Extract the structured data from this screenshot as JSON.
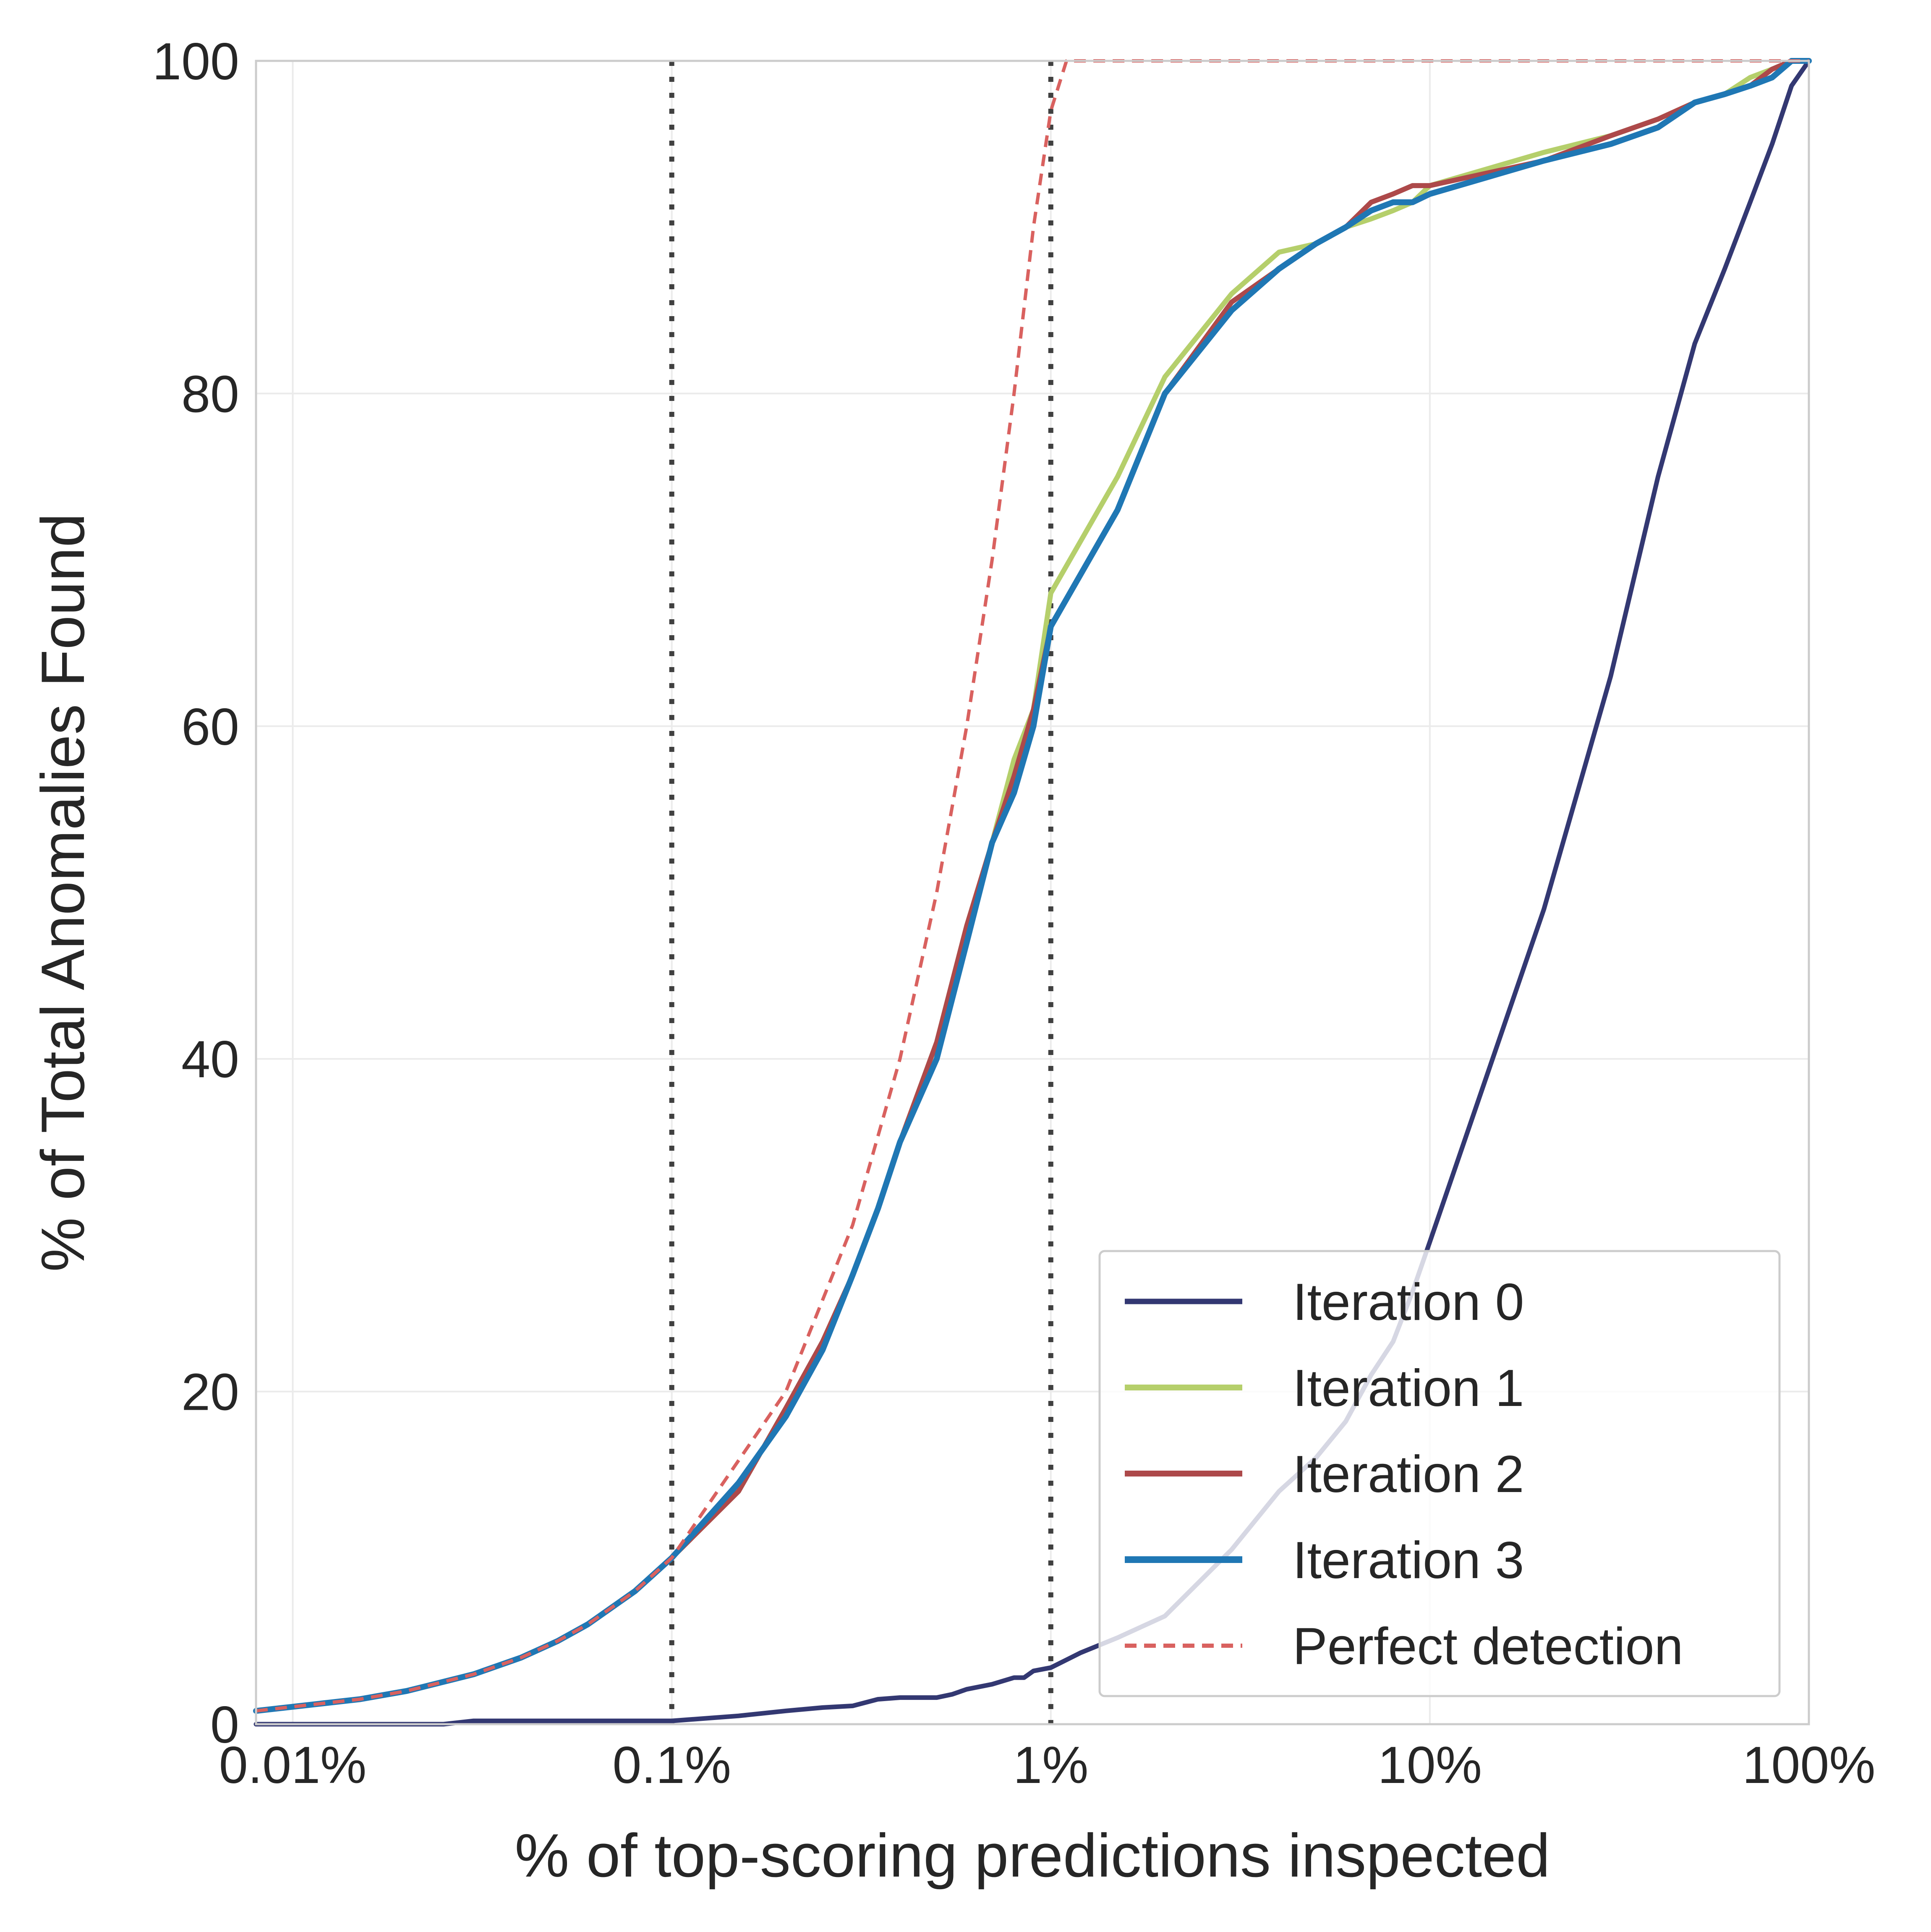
{
  "chart_data": {
    "type": "line",
    "title": "",
    "xlabel": "% of top-scoring predictions inspected",
    "ylabel": "% of Total Anomalies Found",
    "x_scale": "log",
    "xlim": [
      0.008,
      100
    ],
    "ylim": [
      0,
      100
    ],
    "x_ticks": [
      0.01,
      0.1,
      1,
      10,
      100
    ],
    "x_tick_labels": [
      "0.01%",
      "0.1%",
      "1%",
      "10%",
      "100%"
    ],
    "y_ticks": [
      0,
      20,
      40,
      60,
      80,
      100
    ],
    "y_tick_labels": [
      "0",
      "20",
      "40",
      "60",
      "80",
      "100"
    ],
    "grid": true,
    "legend_position": "lower-right",
    "vlines": [
      {
        "x": 0.1,
        "color": "#404040",
        "style": "dotted"
      },
      {
        "x": 1,
        "color": "#404040",
        "style": "dotted"
      }
    ],
    "series": [
      {
        "name": "Iteration 0",
        "color": "#333872",
        "style": "solid",
        "points": [
          [
            0.008,
            0
          ],
          [
            0.025,
            0
          ],
          [
            0.03,
            0.2
          ],
          [
            0.05,
            0.2
          ],
          [
            0.1,
            0.2
          ],
          [
            0.15,
            0.5
          ],
          [
            0.2,
            0.8
          ],
          [
            0.25,
            1.0
          ],
          [
            0.3,
            1.1
          ],
          [
            0.35,
            1.5
          ],
          [
            0.4,
            1.6
          ],
          [
            0.5,
            1.6
          ],
          [
            0.55,
            1.8
          ],
          [
            0.6,
            2.1
          ],
          [
            0.7,
            2.4
          ],
          [
            0.8,
            2.8
          ],
          [
            0.85,
            2.8
          ],
          [
            0.9,
            3.2
          ],
          [
            1,
            3.4
          ],
          [
            1.2,
            4.3
          ],
          [
            1.5,
            5.2
          ],
          [
            2,
            6.5
          ],
          [
            3,
            10.5
          ],
          [
            4,
            14
          ],
          [
            5,
            16
          ],
          [
            6,
            18.2
          ],
          [
            7,
            21
          ],
          [
            8,
            23
          ],
          [
            9,
            26
          ],
          [
            10,
            29
          ],
          [
            20,
            49
          ],
          [
            30,
            63
          ],
          [
            40,
            75
          ],
          [
            50,
            83
          ],
          [
            60,
            87.5
          ],
          [
            70,
            91.5
          ],
          [
            80,
            95
          ],
          [
            90,
            98.5
          ],
          [
            100,
            100
          ]
        ]
      },
      {
        "name": "Iteration 1",
        "color": "#b5cf6b",
        "style": "solid",
        "points": [
          [
            0.008,
            0.8
          ],
          [
            0.015,
            1.5
          ],
          [
            0.02,
            2.0
          ],
          [
            0.03,
            3.0
          ],
          [
            0.04,
            4.0
          ],
          [
            0.05,
            5.0
          ],
          [
            0.06,
            6.0
          ],
          [
            0.08,
            8.0
          ],
          [
            0.1,
            10
          ],
          [
            0.15,
            14
          ],
          [
            0.2,
            19
          ],
          [
            0.25,
            23
          ],
          [
            0.3,
            27
          ],
          [
            0.35,
            31
          ],
          [
            0.4,
            35
          ],
          [
            0.5,
            41
          ],
          [
            0.6,
            48
          ],
          [
            0.7,
            53
          ],
          [
            0.8,
            58
          ],
          [
            0.9,
            61
          ],
          [
            1,
            68
          ],
          [
            1.5,
            75
          ],
          [
            2,
            81
          ],
          [
            3,
            86
          ],
          [
            4,
            88.5
          ],
          [
            5,
            89
          ],
          [
            6,
            90
          ],
          [
            7,
            90.5
          ],
          [
            8,
            91
          ],
          [
            9,
            91.5
          ],
          [
            10,
            92.5
          ],
          [
            20,
            94.5
          ],
          [
            30,
            95.5
          ],
          [
            40,
            96.5
          ],
          [
            50,
            97.5
          ],
          [
            60,
            98
          ],
          [
            70,
            99
          ],
          [
            80,
            99.5
          ],
          [
            90,
            100
          ],
          [
            100,
            100
          ]
        ]
      },
      {
        "name": "Iteration 2",
        "color": "#ad494a",
        "style": "solid",
        "points": [
          [
            0.008,
            0.8
          ],
          [
            0.015,
            1.5
          ],
          [
            0.02,
            2.0
          ],
          [
            0.03,
            3.0
          ],
          [
            0.04,
            4.0
          ],
          [
            0.05,
            5.0
          ],
          [
            0.06,
            6.0
          ],
          [
            0.08,
            8.0
          ],
          [
            0.1,
            10
          ],
          [
            0.15,
            14
          ],
          [
            0.2,
            19
          ],
          [
            0.25,
            23
          ],
          [
            0.3,
            27
          ],
          [
            0.35,
            31
          ],
          [
            0.4,
            35
          ],
          [
            0.5,
            41
          ],
          [
            0.6,
            48
          ],
          [
            0.7,
            53
          ],
          [
            0.8,
            57
          ],
          [
            0.9,
            61
          ],
          [
            1,
            66
          ],
          [
            1.5,
            73
          ],
          [
            2,
            80
          ],
          [
            3,
            85.5
          ],
          [
            4,
            87.5
          ],
          [
            5,
            89
          ],
          [
            6,
            90
          ],
          [
            7,
            91.5
          ],
          [
            8,
            92
          ],
          [
            9,
            92.5
          ],
          [
            10,
            92.5
          ],
          [
            20,
            94
          ],
          [
            30,
            95.5
          ],
          [
            40,
            96.5
          ],
          [
            50,
            97.5
          ],
          [
            60,
            98
          ],
          [
            70,
            98.5
          ],
          [
            80,
            99.5
          ],
          [
            90,
            100
          ],
          [
            100,
            100
          ]
        ]
      },
      {
        "name": "Iteration 3",
        "color": "#1f77b4",
        "style": "solid",
        "points": [
          [
            0.008,
            0.8
          ],
          [
            0.015,
            1.5
          ],
          [
            0.02,
            2.0
          ],
          [
            0.03,
            3.0
          ],
          [
            0.04,
            4.0
          ],
          [
            0.05,
            5.0
          ],
          [
            0.06,
            6.0
          ],
          [
            0.08,
            8.0
          ],
          [
            0.1,
            10
          ],
          [
            0.15,
            14.5
          ],
          [
            0.2,
            18.5
          ],
          [
            0.25,
            22.5
          ],
          [
            0.3,
            27
          ],
          [
            0.35,
            31
          ],
          [
            0.4,
            35
          ],
          [
            0.5,
            40
          ],
          [
            0.6,
            47
          ],
          [
            0.7,
            53
          ],
          [
            0.8,
            56
          ],
          [
            0.9,
            60
          ],
          [
            1,
            66
          ],
          [
            1.5,
            73
          ],
          [
            2,
            80
          ],
          [
            3,
            85
          ],
          [
            4,
            87.5
          ],
          [
            5,
            89
          ],
          [
            6,
            90
          ],
          [
            7,
            91
          ],
          [
            8,
            91.5
          ],
          [
            9,
            91.5
          ],
          [
            10,
            92
          ],
          [
            20,
            94
          ],
          [
            30,
            95
          ],
          [
            40,
            96
          ],
          [
            50,
            97.5
          ],
          [
            60,
            98
          ],
          [
            70,
            98.5
          ],
          [
            80,
            99
          ],
          [
            90,
            100
          ],
          [
            100,
            100
          ]
        ]
      },
      {
        "name": "Perfect detection",
        "color": "#d9615f",
        "style": "dashed",
        "points": [
          [
            0.008,
            0.8
          ],
          [
            0.015,
            1.5
          ],
          [
            0.02,
            2.0
          ],
          [
            0.03,
            3.0
          ],
          [
            0.04,
            4.0
          ],
          [
            0.05,
            5.0
          ],
          [
            0.06,
            6.0
          ],
          [
            0.08,
            8.0
          ],
          [
            0.1,
            10
          ],
          [
            0.2,
            20
          ],
          [
            0.3,
            30
          ],
          [
            0.4,
            40
          ],
          [
            0.5,
            50
          ],
          [
            0.6,
            60
          ],
          [
            0.7,
            70
          ],
          [
            0.8,
            80
          ],
          [
            0.9,
            90
          ],
          [
            1,
            97
          ],
          [
            1.1,
            100
          ],
          [
            100,
            100
          ]
        ]
      }
    ]
  }
}
